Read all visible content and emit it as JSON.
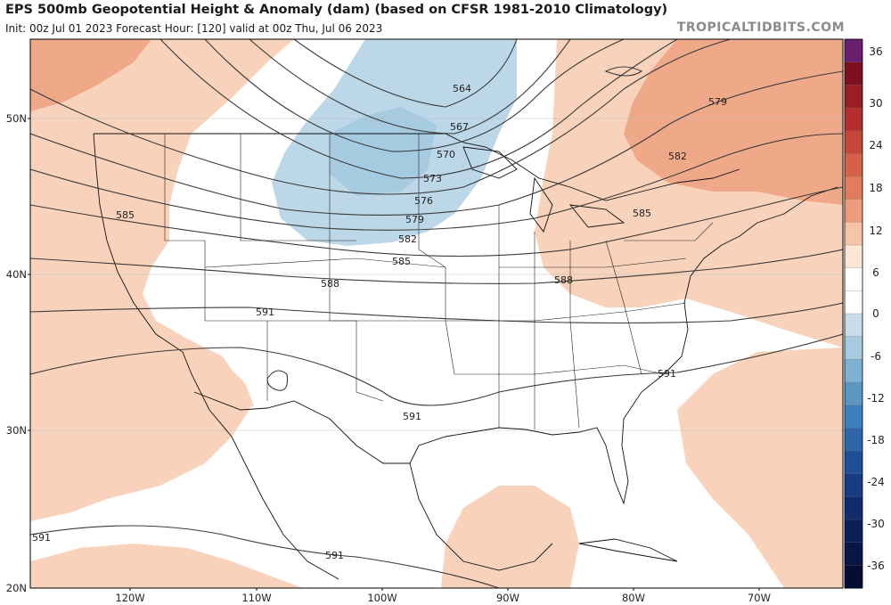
{
  "header": {
    "title": "EPS 500mb Geopotential Height & Anomaly (dam) (based on CFSR 1981-2010 Climatology)",
    "subtitle": "Init: 00z Jul 01 2023   Forecast Hour: [120]   valid at 00z Thu, Jul 06 2023",
    "brand": "TROPICALTIDBITS.COM"
  },
  "map": {
    "lat_labels": [
      "50N",
      "40N",
      "30N",
      "20N"
    ],
    "lon_labels": [
      "120W",
      "110W",
      "100W",
      "90W",
      "80W",
      "70W"
    ],
    "contour_labels": [
      "564",
      "567",
      "570",
      "573",
      "576",
      "579",
      "582",
      "585",
      "588",
      "591",
      "579",
      "582",
      "585",
      "585",
      "588",
      "591",
      "591",
      "591",
      "591"
    ]
  },
  "colorbar": {
    "labels": [
      "36",
      "30",
      "24",
      "18",
      "12",
      "6",
      "0",
      "-6",
      "-12",
      "-18",
      "-24",
      "-30",
      "-36"
    ],
    "colors": [
      "#6a1f6e",
      "#7d1020",
      "#981f25",
      "#b22d2b",
      "#c64737",
      "#d76048",
      "#e27c5e",
      "#ec9c7d",
      "#f6c4a8",
      "#fde6d4",
      "#ffffff",
      "#ffffff",
      "#c8dde9",
      "#a6cae0",
      "#7fb1d3",
      "#5b97c5",
      "#3f7ebc",
      "#2e66ac",
      "#1f4f98",
      "#173c82",
      "#112c6d",
      "#0c1f58",
      "#081546",
      "#050d33"
    ]
  }
}
